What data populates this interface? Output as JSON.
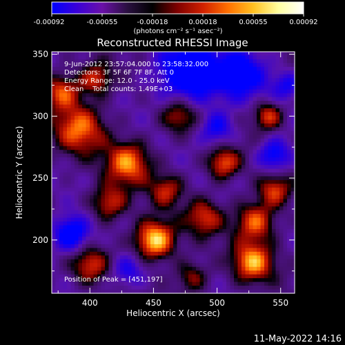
{
  "colorbar": {
    "ticks": [
      "-0.00092",
      "-0.00055",
      "-0.00018",
      "0.00018",
      "0.00055",
      "0.00092"
    ],
    "unit_label": "(photons cm⁻² s⁻¹ asec⁻²)",
    "colors": [
      "#0000ff",
      "#3a00d8",
      "#6a10a8",
      "#2a1040",
      "#000000",
      "#800000",
      "#d02000",
      "#ff7000",
      "#ffc020",
      "#ffffa0",
      "#ffffff"
    ]
  },
  "chart_data": {
    "type": "heatmap",
    "title": "Reconstructed RHESSI Image",
    "xlabel": "Heliocentric X (arcsec)",
    "ylabel": "Heliocentric Y (arcsec)",
    "xlim": [
      370,
      561
    ],
    "ylim": [
      157,
      352
    ],
    "xticks": [
      400,
      450,
      500,
      550
    ],
    "yticks": [
      200,
      250,
      300,
      350
    ],
    "annotations": [
      "9-Jun-2012 23:57:04.000 to 23:58:32.000",
      "Detectors: 3F 5F 6F 7F 8F, Att 0",
      "Energy Range: 12.0 - 25.0 keV",
      "Clean    Total counts: 1.49E+03"
    ],
    "peak_label": "Position of Peak = [451,197]",
    "peak": [
      451,
      197
    ],
    "sources": [
      {
        "x": 451,
        "y": 200,
        "amp": 1.0,
        "r": 11
      },
      {
        "x": 430,
        "y": 262,
        "amp": 0.75,
        "r": 12
      },
      {
        "x": 392,
        "y": 290,
        "amp": 0.7,
        "r": 14
      },
      {
        "x": 378,
        "y": 320,
        "amp": 0.65,
        "r": 10
      },
      {
        "x": 405,
        "y": 330,
        "amp": 0.6,
        "r": 9
      },
      {
        "x": 470,
        "y": 300,
        "amp": 0.55,
        "r": 10
      },
      {
        "x": 505,
        "y": 262,
        "amp": 0.7,
        "r": 9
      },
      {
        "x": 540,
        "y": 300,
        "amp": 0.65,
        "r": 8
      },
      {
        "x": 545,
        "y": 240,
        "amp": 0.6,
        "r": 9
      },
      {
        "x": 530,
        "y": 215,
        "amp": 0.7,
        "r": 11
      },
      {
        "x": 528,
        "y": 182,
        "amp": 0.8,
        "r": 11
      },
      {
        "x": 490,
        "y": 218,
        "amp": 0.55,
        "r": 10
      },
      {
        "x": 400,
        "y": 180,
        "amp": 0.55,
        "r": 10
      },
      {
        "x": 415,
        "y": 230,
        "amp": 0.6,
        "r": 10
      },
      {
        "x": 460,
        "y": 240,
        "amp": 0.5,
        "r": 9
      },
      {
        "x": 480,
        "y": 170,
        "amp": 0.45,
        "r": 9
      }
    ],
    "sinks": [
      {
        "x": 478,
        "y": 335,
        "amp": 0.9,
        "r": 18
      },
      {
        "x": 520,
        "y": 335,
        "amp": 0.7,
        "r": 14
      },
      {
        "x": 385,
        "y": 205,
        "amp": 0.85,
        "r": 10
      },
      {
        "x": 545,
        "y": 268,
        "amp": 0.7,
        "r": 9
      },
      {
        "x": 500,
        "y": 290,
        "amp": 0.6,
        "r": 9
      },
      {
        "x": 430,
        "y": 175,
        "amp": 0.5,
        "r": 9
      },
      {
        "x": 555,
        "y": 325,
        "amp": 0.5,
        "r": 8
      }
    ]
  },
  "footer": {
    "timestamp": "11-May-2022 14:16"
  }
}
